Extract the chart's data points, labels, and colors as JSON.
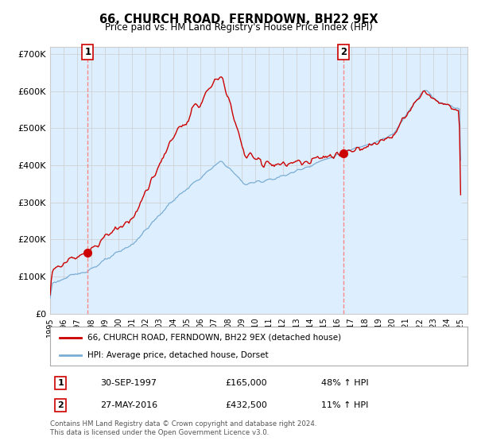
{
  "title": "66, CHURCH ROAD, FERNDOWN, BH22 9EX",
  "subtitle": "Price paid vs. HM Land Registry's House Price Index (HPI)",
  "ylim": [
    0,
    720000
  ],
  "yticks": [
    0,
    100000,
    200000,
    300000,
    400000,
    500000,
    600000,
    700000
  ],
  "ytick_labels": [
    "£0",
    "£100K",
    "£200K",
    "£300K",
    "£400K",
    "£500K",
    "£600K",
    "£700K"
  ],
  "xlim": [
    1995.0,
    2025.5
  ],
  "sale1_t": 1997.75,
  "sale1_p": 165000,
  "sale2_t": 2016.42,
  "sale2_p": 432500,
  "line_color_red": "#cc0000",
  "line_color_blue": "#7aadd4",
  "fill_color_blue": "#ddeeff",
  "marker_color": "#cc0000",
  "vline_color": "#ff8888",
  "grid_color": "#cccccc",
  "bg_color": "#ffffff",
  "legend_line1": "66, CHURCH ROAD, FERNDOWN, BH22 9EX (detached house)",
  "legend_line2": "HPI: Average price, detached house, Dorset",
  "table_row1": [
    "1",
    "30-SEP-1997",
    "£165,000",
    "48% ↑ HPI"
  ],
  "table_row2": [
    "2",
    "27-MAY-2016",
    "£432,500",
    "11% ↑ HPI"
  ],
  "footer": "Contains HM Land Registry data © Crown copyright and database right 2024.\nThis data is licensed under the Open Government Licence v3.0."
}
